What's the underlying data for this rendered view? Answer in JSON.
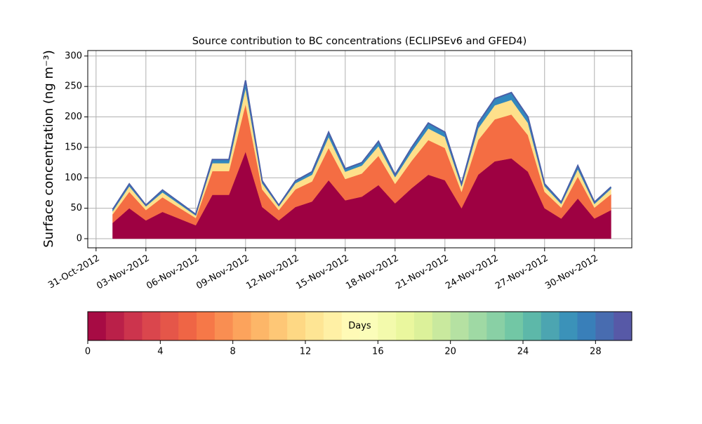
{
  "chart_data": {
    "type": "stacked_area",
    "title": "Source contribution to BC concentrations (ECLIPSEv6 and GFED4)",
    "ylabel": "Surface concentration (ng m⁻³)",
    "x": [
      "2012-11-01",
      "2012-11-02",
      "2012-11-03",
      "2012-11-04",
      "2012-11-05",
      "2012-11-06",
      "2012-11-07",
      "2012-11-08",
      "2012-11-09",
      "2012-11-10",
      "2012-11-11",
      "2012-11-12",
      "2012-11-13",
      "2012-11-14",
      "2012-11-15",
      "2012-11-16",
      "2012-11-17",
      "2012-11-18",
      "2012-11-19",
      "2012-11-20",
      "2012-11-21",
      "2012-11-22",
      "2012-11-23",
      "2012-11-24",
      "2012-11-25",
      "2012-11-26",
      "2012-11-27",
      "2012-11-28",
      "2012-11-29",
      "2012-11-30",
      "2012-12-01"
    ],
    "series": [
      {
        "color": "#9e0142",
        "values": [
          26,
          50,
          30,
          44,
          33,
          22,
          72,
          72,
          143,
          52,
          30,
          52,
          61,
          96,
          63,
          69,
          88,
          58,
          83,
          105,
          96,
          50,
          105,
          127,
          132,
          110,
          50,
          33,
          66,
          33,
          47
        ]
      },
      {
        "color": "#f46d43",
        "values": [
          14,
          27,
          17,
          24,
          18,
          12,
          39,
          39,
          78,
          29,
          17,
          29,
          33,
          53,
          35,
          38,
          48,
          32,
          45,
          57,
          53,
          27,
          57,
          69,
          72,
          60,
          27,
          18,
          36,
          18,
          26
        ]
      },
      {
        "color": "#fee08b",
        "values": [
          5,
          9,
          6,
          8,
          6,
          4,
          13,
          13,
          26,
          10,
          6,
          10,
          11,
          18,
          12,
          13,
          16,
          11,
          15,
          19,
          18,
          9,
          19,
          23,
          24,
          20,
          9,
          6,
          12,
          6,
          9
        ]
      },
      {
        "color": "#3288bd",
        "values": [
          3,
          4,
          2,
          4,
          3,
          2,
          6,
          6,
          13,
          4,
          2,
          4,
          5,
          8,
          5,
          5,
          8,
          4,
          7,
          9,
          8,
          4,
          9,
          11,
          12,
          10,
          4,
          3,
          6,
          3,
          3
        ]
      }
    ],
    "outline_color": "#4a5fa8",
    "xlim": [
      "2012-10-30T12:00Z",
      "2012-12-02T06:00Z"
    ],
    "xticks": [
      {
        "value": "2012-10-31",
        "label": "31-Oct-2012"
      },
      {
        "value": "2012-11-03",
        "label": "03-Nov-2012"
      },
      {
        "value": "2012-11-06",
        "label": "06-Nov-2012"
      },
      {
        "value": "2012-11-09",
        "label": "09-Nov-2012"
      },
      {
        "value": "2012-11-12",
        "label": "12-Nov-2012"
      },
      {
        "value": "2012-11-15",
        "label": "15-Nov-2012"
      },
      {
        "value": "2012-11-18",
        "label": "18-Nov-2012"
      },
      {
        "value": "2012-11-21",
        "label": "21-Nov-2012"
      },
      {
        "value": "2012-11-24",
        "label": "24-Nov-2012"
      },
      {
        "value": "2012-11-27",
        "label": "27-Nov-2012"
      },
      {
        "value": "2012-11-30",
        "label": "30-Nov-2012"
      }
    ],
    "ylim": [
      -15,
      309
    ],
    "yticks": [
      0,
      50,
      100,
      150,
      200,
      250,
      300
    ],
    "grid": true,
    "colorbar": {
      "label": "Days",
      "lim": [
        0,
        30
      ],
      "ticks": [
        0,
        4,
        8,
        12,
        16,
        20,
        24,
        28
      ],
      "colors": [
        "#9e0142",
        "#d53e4f",
        "#f46d43",
        "#fdae61",
        "#fee08b",
        "#ffffbf",
        "#e6f598",
        "#abdda4",
        "#66c2a5",
        "#3288bd",
        "#5e4fa2"
      ]
    }
  }
}
